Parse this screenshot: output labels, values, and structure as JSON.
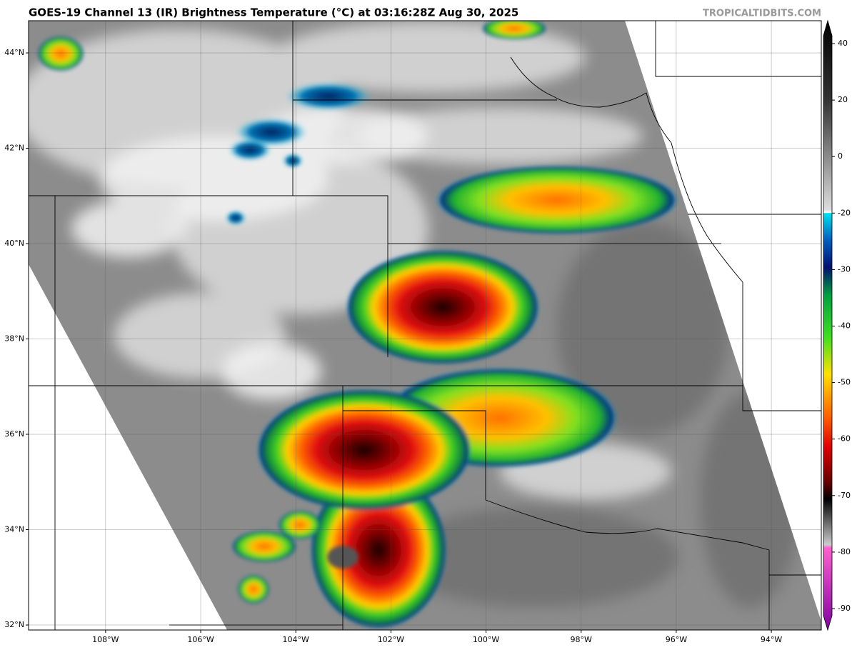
{
  "header": {
    "title": "GOES-19 Channel 13 (IR) Brightness Temperature (°C) at 03:16:28Z Aug 30, 2025",
    "watermark": "TROPICALTIDBITS.COM"
  },
  "map": {
    "xlim": [
      -109.62,
      -92.95
    ],
    "ylim": [
      31.895,
      44.675
    ],
    "xticks": [
      {
        "value": -108,
        "label": "108°W"
      },
      {
        "value": -106,
        "label": "106°W"
      },
      {
        "value": -104,
        "label": "104°W"
      },
      {
        "value": -102,
        "label": "102°W"
      },
      {
        "value": -100,
        "label": "100°W"
      },
      {
        "value": -98,
        "label": "98°W"
      },
      {
        "value": -96,
        "label": "96°W"
      },
      {
        "value": -94,
        "label": "94°W"
      }
    ],
    "yticks": [
      {
        "value": 44,
        "label": "44°N"
      },
      {
        "value": 42,
        "label": "42°N"
      },
      {
        "value": 40,
        "label": "40°N"
      },
      {
        "value": 38,
        "label": "38°N"
      },
      {
        "value": 36,
        "label": "36°N"
      },
      {
        "value": 34,
        "label": "34°N"
      },
      {
        "value": 32,
        "label": "32°N"
      }
    ],
    "grid": true
  },
  "colorbar": {
    "ticks": [
      40,
      20,
      0,
      -20,
      -30,
      -40,
      -50,
      -60,
      -70,
      -80,
      -90
    ]
  }
}
